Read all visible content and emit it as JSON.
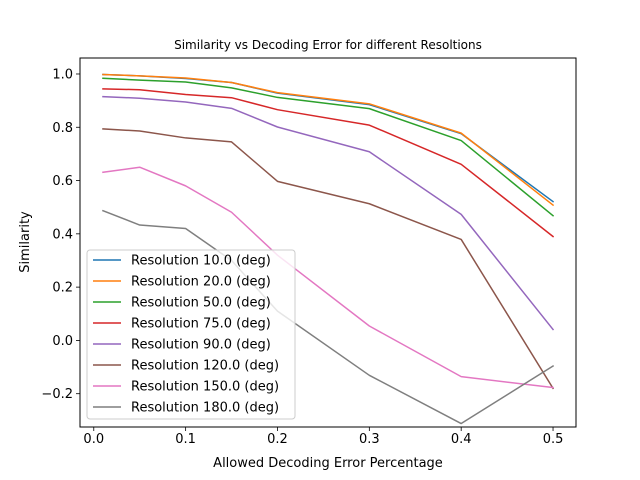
{
  "chart_data": {
    "type": "line",
    "title": "Similarity vs Decoding Error for different Resoltions",
    "xlabel": "Allowed Decoding Error Percentage",
    "ylabel": "Similarity",
    "xlim": [
      -0.015,
      0.525
    ],
    "ylim": [
      -0.325,
      1.06
    ],
    "xticks": [
      0.0,
      0.1,
      0.2,
      0.3,
      0.4,
      0.5
    ],
    "xtick_labels": [
      "0.0",
      "0.1",
      "0.2",
      "0.3",
      "0.4",
      "0.5"
    ],
    "yticks": [
      -0.2,
      0.0,
      0.2,
      0.4,
      0.6,
      0.8,
      1.0
    ],
    "ytick_labels": [
      "−0.2",
      "0.0",
      "0.2",
      "0.4",
      "0.6",
      "0.8",
      "1.0"
    ],
    "grid": false,
    "legend_position": "lower-left",
    "x": [
      0.01,
      0.05,
      0.1,
      0.15,
      0.2,
      0.3,
      0.4,
      0.5
    ],
    "series": [
      {
        "name": "Resolution 10.0 (deg)",
        "color": "#1f77b4",
        "values": [
          0.998,
          0.993,
          0.983,
          0.968,
          0.928,
          0.885,
          0.776,
          0.521
        ]
      },
      {
        "name": "Resolution 20.0 (deg)",
        "color": "#ff7f0e",
        "values": [
          0.998,
          0.993,
          0.985,
          0.968,
          0.93,
          0.888,
          0.778,
          0.508
        ]
      },
      {
        "name": "Resolution 50.0 (deg)",
        "color": "#2ca02c",
        "values": [
          0.984,
          0.977,
          0.97,
          0.948,
          0.912,
          0.87,
          0.75,
          0.468
        ]
      },
      {
        "name": "Resolution 75.0 (deg)",
        "color": "#d62728",
        "values": [
          0.944,
          0.941,
          0.923,
          0.911,
          0.866,
          0.808,
          0.661,
          0.39
        ]
      },
      {
        "name": "Resolution 90.0 (deg)",
        "color": "#9467bd",
        "values": [
          0.915,
          0.909,
          0.895,
          0.871,
          0.801,
          0.708,
          0.473,
          0.041
        ]
      },
      {
        "name": "Resolution 120.0 (deg)",
        "color": "#8c564b",
        "values": [
          0.794,
          0.786,
          0.76,
          0.745,
          0.597,
          0.513,
          0.379,
          -0.18
        ]
      },
      {
        "name": "Resolution 150.0 (deg)",
        "color": "#e377c2",
        "values": [
          0.631,
          0.65,
          0.58,
          0.481,
          0.32,
          0.054,
          -0.136,
          -0.177
        ]
      },
      {
        "name": "Resolution 180.0 (deg)",
        "color": "#7f7f7f",
        "values": [
          0.487,
          0.433,
          0.42,
          0.3,
          0.11,
          -0.131,
          -0.312,
          -0.096
        ]
      }
    ]
  }
}
